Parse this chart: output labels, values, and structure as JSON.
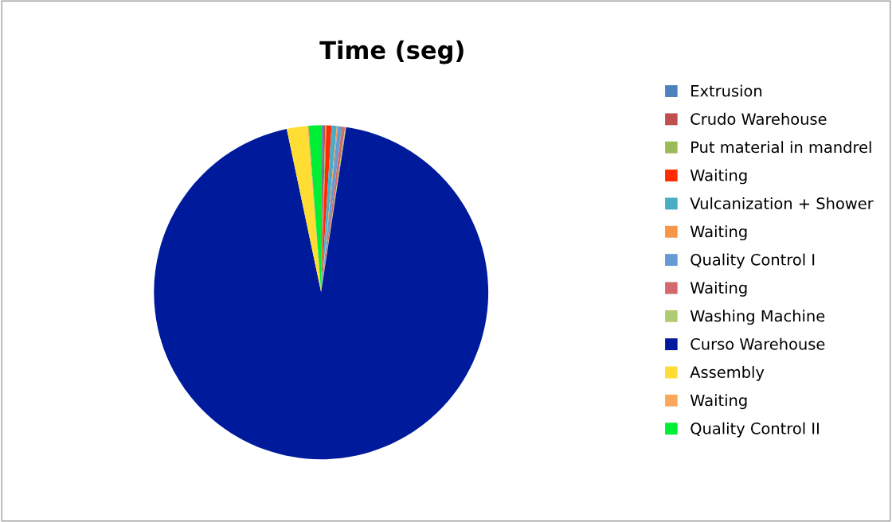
{
  "chart_data": {
    "type": "pie",
    "title": "Time (seg)",
    "categories": [
      "Extrusion",
      "Crudo Warehouse",
      "Put material in mandrel",
      "Waiting",
      "Vulcanization + Shower",
      "Waiting",
      "Quality Control I",
      "Waiting",
      "Washing Machine",
      "Curso Warehouse",
      "Assembly",
      "Waiting",
      "Quality Control II"
    ],
    "values": [
      0.2,
      0.2,
      0.1,
      0.5,
      0.5,
      0.1,
      0.4,
      0.3,
      0.1,
      94.3,
      2.0,
      0.1,
      1.2
    ],
    "colors": [
      "#4f81bd",
      "#c0504d",
      "#9bbb59",
      "#ff2a00",
      "#4bacc6",
      "#f79646",
      "#659ad2",
      "#d16b69",
      "#b0cb74",
      "#001a9c",
      "#ffdd33",
      "#fba65c",
      "#00ee33"
    ],
    "legend": "right"
  }
}
